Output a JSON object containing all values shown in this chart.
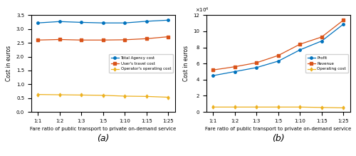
{
  "x_labels": [
    "1:1",
    "1:2",
    "1:3",
    "1:5",
    "1:10",
    "1:15",
    "1:25"
  ],
  "x_positions": [
    0,
    1,
    2,
    3,
    4,
    5,
    6
  ],
  "a_total_agency": [
    3.22,
    3.27,
    3.24,
    3.22,
    3.22,
    3.28,
    3.32
  ],
  "a_user_travel": [
    2.6,
    2.62,
    2.6,
    2.6,
    2.61,
    2.65,
    2.72
  ],
  "a_operator_op": [
    0.63,
    0.62,
    0.61,
    0.6,
    0.57,
    0.56,
    0.53
  ],
  "a_ylim": [
    0,
    3.5
  ],
  "a_yticks": [
    0,
    0.5,
    1.0,
    1.5,
    2.0,
    2.5,
    3.0,
    3.5
  ],
  "b_profit": [
    45000,
    50000,
    55000,
    63000,
    77000,
    88000,
    109000
  ],
  "b_revenue": [
    52000,
    56000,
    61000,
    70000,
    84000,
    93000,
    114000
  ],
  "b_operating": [
    6000,
    6000,
    6000,
    6000,
    6000,
    5500,
    5000
  ],
  "b_ylim": [
    0,
    120000
  ],
  "b_yticks": [
    0,
    20000,
    40000,
    60000,
    80000,
    100000,
    120000
  ],
  "b_yticklabels": [
    "0",
    "2",
    "4",
    "6",
    "8",
    "10",
    "12"
  ],
  "color_blue": "#0072bd",
  "color_orange": "#d95319",
  "color_yellow": "#edb120",
  "marker_circle": "o",
  "marker_square": "s",
  "marker_diamond": "d",
  "xlabel": "Fare ratio of public transport to private on-demand service",
  "ylabel": "Cost in euros",
  "label_a_1": "Total Agency cost",
  "label_a_2": "User's travel cost",
  "label_a_3": "Operator's operating cost",
  "label_b_1": "Profit",
  "label_b_2": "Revenue",
  "label_b_3": "Operating cost",
  "subplot_a": "(a)",
  "subplot_b": "(b)",
  "fig_width": 5.0,
  "fig_height": 2.19,
  "dpi": 100
}
